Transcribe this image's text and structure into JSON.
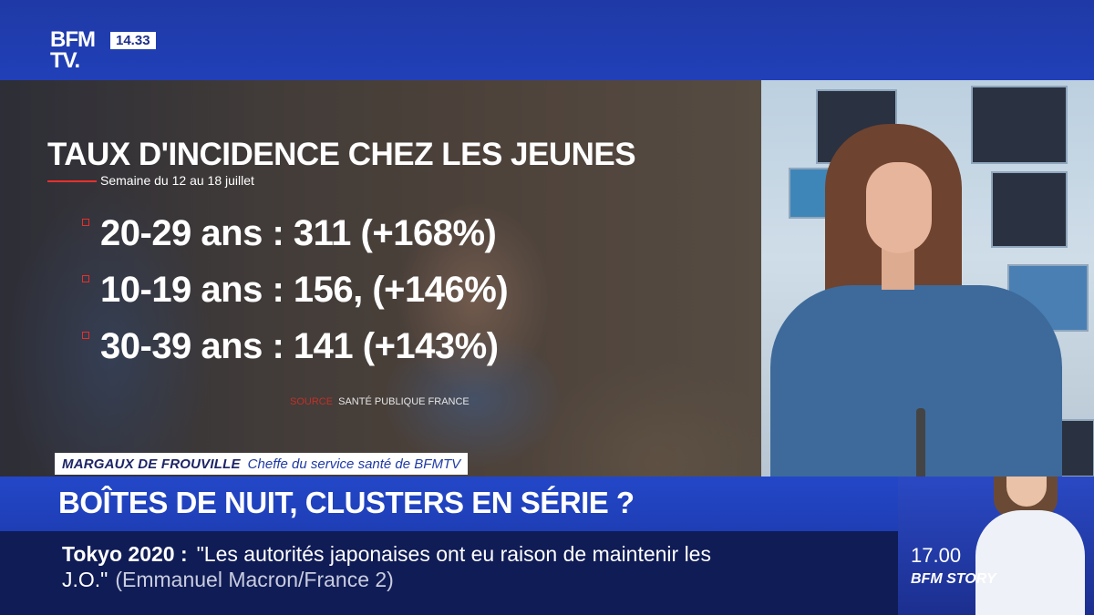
{
  "channel": {
    "logo_line1": "BFM",
    "logo_line2": "TV.",
    "clock": "14.33"
  },
  "graphic": {
    "title": "TAUX D'INCIDENCE CHEZ LES JEUNES",
    "subtitle": "Semaine du 12 au 18 juillet",
    "rows": [
      {
        "text": "20-29 ans : 311  (+168%)"
      },
      {
        "text": "10-19 ans : 156, (+146%)"
      },
      {
        "text": "30-39 ans : 141 (+143%)"
      }
    ],
    "source_label": "SOURCE",
    "source_text": "SANTÉ PUBLIQUE FRANCE"
  },
  "name_strap": {
    "name": "MARGAUX DE FROUVILLE",
    "role": "Cheffe du service santé de BFMTV"
  },
  "headline": "BOÎTES DE NUIT, CLUSTERS EN SÉRIE ?",
  "ticker": {
    "topic": "Tokyo 2020  :",
    "quote_line1": "\"Les autorités japonaises ont eu raison de maintenir les",
    "quote_line2": "J.O.\"",
    "attribution": "(Emmanuel Macron/France 2)"
  },
  "promo": {
    "time": "17.00",
    "show": "BFM STORY"
  },
  "colors": {
    "brand_blue": "#2140b8",
    "ticker_navy": "#101c55",
    "accent_red": "#e8302a"
  }
}
